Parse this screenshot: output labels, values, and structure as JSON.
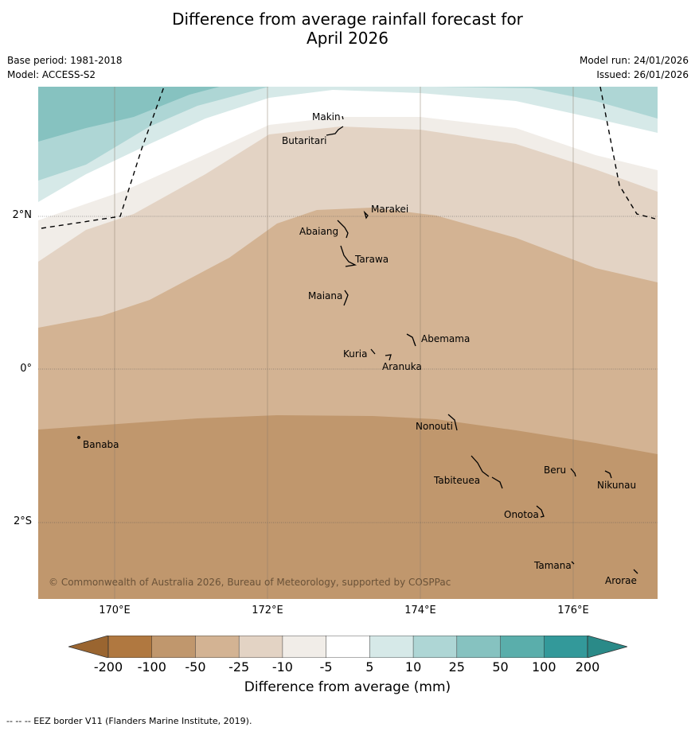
{
  "title": {
    "line1": "Difference from average rainfall forecast for",
    "line2": "April 2026"
  },
  "meta": {
    "base_period": "Base period: 1981-2018",
    "model": "Model: ACCESS-S2",
    "model_run": "Model run: 24/01/2026",
    "issued": "Issued: 26/01/2026"
  },
  "map": {
    "copyright": "© Commonwealth of Australia 2026, Bureau of Meteorology, supported by COSPPac",
    "lat_labels": [
      "2°N",
      "0°",
      "2°S"
    ],
    "lon_labels": [
      "170°E",
      "172°E",
      "174°E",
      "176°E"
    ],
    "islands": [
      "Makin",
      "Butaritari",
      "Marakei",
      "Abaiang",
      "Tarawa",
      "Maiana",
      "Abemama",
      "Kuria",
      "Aranuka",
      "Nonouti",
      "Banaba",
      "Beru",
      "Nikunau",
      "Tabiteuea",
      "Onotoa",
      "Tamana",
      "Arorae"
    ]
  },
  "colorbar": {
    "ticks": [
      "-200",
      "-100",
      "-50",
      "-25",
      "-10",
      "-5",
      "5",
      "10",
      "25",
      "50",
      "100",
      "200"
    ],
    "colors": [
      "#b07840",
      "#c0976d",
      "#d3b393",
      "#e3d3c4",
      "#f1ede8",
      "#ffffff",
      "#d6e9e8",
      "#aed6d5",
      "#86c2c0",
      "#5aaeab",
      "#33999a"
    ],
    "extend_low_color": "#9a6530",
    "extend_high_color": "#2a8a88",
    "label": "Difference from average (mm)"
  },
  "footnote": "--  --  -- EEZ border V11 (Flanders Marine Institute, 2019)."
}
